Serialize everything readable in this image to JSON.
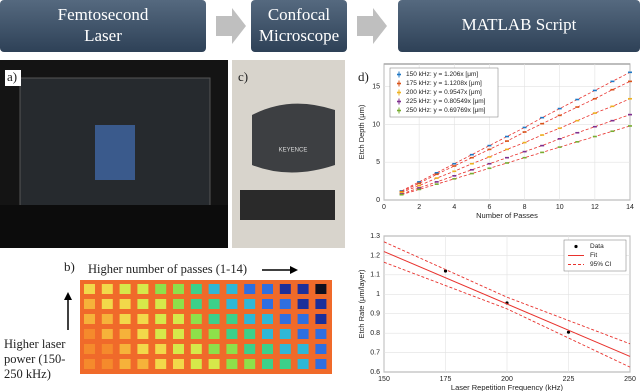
{
  "header": {
    "boxes": [
      [
        "Femtosecond",
        "Laser"
      ],
      [
        "Confocal",
        "Microscope"
      ],
      [
        "MATLAB Script"
      ]
    ]
  },
  "panels": {
    "labels": [
      "a)",
      "b)",
      "c)",
      "d)"
    ]
  },
  "photo": {
    "brand": "KEYENCE"
  },
  "heatmap": {
    "x_label": "Higher number of passes (1-14)",
    "y_label": [
      "Higher laser",
      "power (150-",
      "250 kHz)"
    ]
  },
  "chart_data": [
    {
      "type": "line",
      "xlabel": "Number of Passes",
      "ylabel": "Etch Depth (μm)",
      "x": [
        1,
        2,
        3,
        4,
        5,
        6,
        7,
        8,
        9,
        10,
        11,
        12,
        13,
        14
      ],
      "xlim": [
        0,
        14
      ],
      "xticks": [
        0,
        2,
        4,
        6,
        8,
        10,
        12,
        14
      ],
      "ylim": [
        0,
        18
      ],
      "yticks": [
        0,
        5,
        10,
        15
      ],
      "grid": true,
      "legend": "upper-left",
      "line_color": "#e8322d",
      "series": [
        {
          "name": "150 kHz: y = 1.206x [μm]",
          "color": "#1f77c4",
          "values": [
            1.2,
            2.4,
            3.6,
            4.8,
            6.0,
            7.2,
            8.4,
            9.6,
            10.9,
            12.1,
            13.3,
            14.5,
            15.7,
            16.9
          ]
        },
        {
          "name": "175 kHz: y = 1.1208x [μm]",
          "color": "#d95319",
          "values": [
            1.1,
            2.2,
            3.4,
            4.5,
            5.6,
            6.7,
            7.8,
            9.0,
            10.1,
            11.2,
            12.3,
            13.4,
            14.6,
            15.7
          ]
        },
        {
          "name": "200 kHz: y = 0.9547x [μm]",
          "color": "#edb120",
          "values": [
            1.0,
            1.9,
            2.9,
            3.8,
            4.8,
            5.7,
            6.7,
            7.6,
            8.6,
            9.5,
            10.5,
            11.5,
            12.4,
            13.4
          ]
        },
        {
          "name": "225 kHz: y = 0.80549x [μm]",
          "color": "#7e2f8e",
          "values": [
            0.8,
            1.6,
            2.4,
            3.2,
            4.0,
            4.8,
            5.6,
            6.4,
            7.2,
            8.1,
            8.9,
            9.7,
            10.5,
            11.3
          ]
        },
        {
          "name": "250 kHz: y = 0.69769x [μm]",
          "color": "#77ac30",
          "values": [
            0.7,
            1.4,
            2.1,
            2.8,
            3.5,
            4.2,
            4.9,
            5.6,
            6.3,
            7.0,
            7.7,
            8.4,
            9.1,
            9.8
          ]
        }
      ]
    },
    {
      "type": "line",
      "xlabel": "Laser Repetition Frequency (kHz)",
      "ylabel": "Etch Rate (μm/layer)",
      "xlim": [
        150,
        250
      ],
      "xticks": [
        150,
        175,
        200,
        225,
        250
      ],
      "ylim": [
        0.6,
        1.3
      ],
      "yticks": [
        0.6,
        0.7,
        0.8,
        0.9,
        1,
        1.1,
        1.2,
        1.3
      ],
      "grid": true,
      "legend": "upper-right",
      "series": [
        {
          "name": "Data",
          "color": "#000000",
          "style": "markers",
          "x": [
            175,
            200,
            225
          ],
          "values": [
            1.12,
            0.955,
            0.805
          ]
        },
        {
          "name": "Fit",
          "color": "#e8322d",
          "style": "line",
          "x": [
            150,
            250
          ],
          "values": [
            1.22,
            0.68
          ]
        },
        {
          "name": "95% CI",
          "color": "#e8322d",
          "style": "dashed",
          "x": [
            150,
            200,
            250
          ],
          "values": [
            1.27,
            0.985,
            0.745
          ],
          "lower": [
            1.165,
            0.925,
            0.625
          ]
        }
      ]
    }
  ]
}
